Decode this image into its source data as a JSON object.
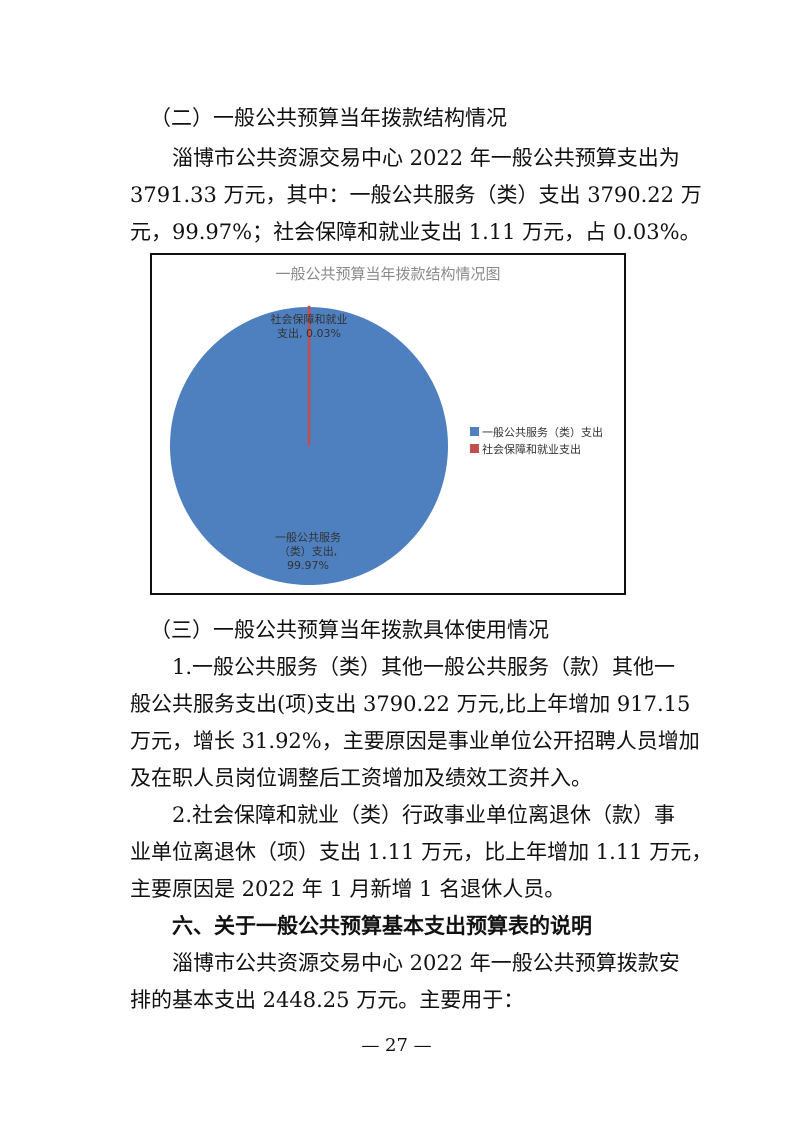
{
  "heading2": "（二）一般公共预算当年拨款结构情况",
  "para1": [
    "淄博市公共资源交易中心 2022 年一般公共预算支出为",
    "3791.33 万元，其中：一般公共服务（类）支出 3790.22 万",
    "元，99.97%；社会保障和就业支出 1.11 万元，占 0.03%。"
  ],
  "chart_data": {
    "type": "pie",
    "title": "一般公共预算当年拨款结构情况图",
    "categories": [
      "一般公共服务（类）支出",
      "社会保障和就业支出"
    ],
    "values": [
      99.97,
      0.03
    ],
    "colors": [
      "#4e7fbf",
      "#c0504d"
    ],
    "data_labels": [
      [
        "一般公共服务",
        "（类）支出,",
        "99.97%"
      ],
      [
        "社会保障和就业",
        "支出, 0.03%"
      ]
    ],
    "legend_position": "right"
  },
  "heading3": "（三）一般公共预算当年拨款具体使用情况",
  "item1": [
    "1.一般公共服务（类）其他一般公共服务（款）其他一",
    "般公共服务支出(项)支出 3790.22 万元,比上年增加 917.15",
    "万元，增长 31.92%，主要原因是事业单位公开招聘人员增加",
    "及在职人员岗位调整后工资增加及绩效工资并入。"
  ],
  "item2": [
    "2.社会保障和就业（类）行政事业单位离退休（款）事",
    "业单位离退休（项）支出 1.11 万元，比上年增加 1.11 万元，",
    "主要原因是 2022 年 1 月新增 1 名退休人员。"
  ],
  "heading6": "六、关于一般公共预算基本支出预算表的说明",
  "para6": [
    "淄博市公共资源交易中心 2022 年一般公共预算拨款安",
    "排的基本支出 2448.25 万元。主要用于："
  ],
  "page_number": "— 27 —"
}
